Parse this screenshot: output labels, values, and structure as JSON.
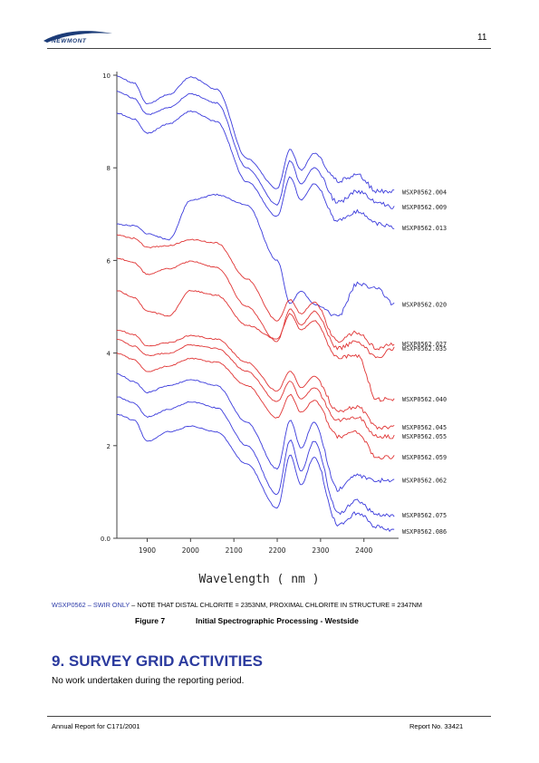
{
  "header": {
    "logo_text": "NEWMONT",
    "page_number": "11"
  },
  "chart_data": {
    "type": "line",
    "xlabel": "Wavelength ( nm )",
    "ylabel": "",
    "xlim": [
      1830,
      2480
    ],
    "ylim": [
      0,
      10
    ],
    "x_ticks": [
      "1900",
      "2000",
      "2100",
      "2200",
      "2300",
      "2400"
    ],
    "y_ticks": [
      "0.0",
      "2",
      "4",
      "6",
      "8",
      "10"
    ],
    "colors": {
      "blue": "#3b3bdc",
      "red": "#e03434"
    },
    "series": [
      {
        "name": "WSXP0562.004",
        "color": "blue",
        "values": [
          9.98,
          9.83,
          9.38,
          9.58,
          9.96,
          9.7,
          8.2,
          7.55,
          8.4,
          7.95,
          8.32,
          7.72,
          7.85,
          7.5,
          7.48
        ]
      },
      {
        "name": "WSXP0562.009",
        "color": "blue",
        "values": [
          9.66,
          9.5,
          9.15,
          9.3,
          9.6,
          9.4,
          8.0,
          7.2,
          8.15,
          7.65,
          8.0,
          7.25,
          7.5,
          7.25,
          7.15
        ]
      },
      {
        "name": "WSXP0562.013",
        "color": "blue",
        "values": [
          9.18,
          9.05,
          8.75,
          8.95,
          9.22,
          9.0,
          7.7,
          6.95,
          7.8,
          7.3,
          7.65,
          6.85,
          7.05,
          6.8,
          6.7
        ]
      },
      {
        "name": "WSXP0562.020",
        "color": "blue",
        "values": [
          6.78,
          6.75,
          6.58,
          6.45,
          7.3,
          7.42,
          7.2,
          6.0,
          5.07,
          5.35,
          5.05,
          4.8,
          5.5,
          5.38,
          5.05
        ]
      },
      {
        "name": "WSXP0562.027",
        "color": "red",
        "values": [
          6.55,
          6.48,
          6.28,
          6.32,
          6.45,
          6.38,
          5.6,
          4.7,
          5.15,
          4.85,
          5.1,
          4.25,
          4.45,
          4.1,
          4.2
        ]
      },
      {
        "name": "WSXP0562.035",
        "color": "red",
        "values": [
          6.05,
          5.95,
          5.7,
          5.82,
          5.98,
          5.85,
          5.0,
          4.25,
          4.95,
          4.6,
          4.9,
          4.1,
          4.25,
          3.9,
          4.1
        ]
      },
      {
        "name": "WSXP0562.040",
        "color": "red",
        "values": [
          5.35,
          5.2,
          4.9,
          4.8,
          5.35,
          5.25,
          4.6,
          4.3,
          4.85,
          4.5,
          4.7,
          3.9,
          3.95,
          3.0,
          3.0
        ]
      },
      {
        "name": "WSXP0562.045",
        "color": "red",
        "values": [
          4.5,
          4.4,
          4.15,
          4.22,
          4.38,
          4.3,
          3.8,
          3.18,
          3.62,
          3.25,
          3.5,
          2.75,
          2.85,
          2.4,
          2.4
        ]
      },
      {
        "name": "WSXP0562.055",
        "color": "red",
        "values": [
          4.3,
          4.15,
          3.95,
          4.0,
          4.18,
          4.1,
          3.6,
          2.95,
          3.4,
          3.0,
          3.25,
          2.55,
          2.62,
          2.2,
          2.2
        ]
      },
      {
        "name": "WSXP0562.059",
        "color": "red",
        "values": [
          4.0,
          3.85,
          3.6,
          3.72,
          3.88,
          3.8,
          3.3,
          2.6,
          3.1,
          2.72,
          2.98,
          2.2,
          2.3,
          1.75,
          1.75
        ]
      },
      {
        "name": "WSXP0562.062",
        "color": "blue",
        "values": [
          3.55,
          3.38,
          3.15,
          3.3,
          3.42,
          3.3,
          2.5,
          1.5,
          2.55,
          1.95,
          2.5,
          1.05,
          1.35,
          1.25,
          1.25
        ]
      },
      {
        "name": "WSXP0562.075",
        "color": "blue",
        "values": [
          3.05,
          2.92,
          2.62,
          2.78,
          2.95,
          2.82,
          2.0,
          0.95,
          2.12,
          1.45,
          2.1,
          0.55,
          0.8,
          0.52,
          0.5
        ]
      },
      {
        "name": "WSXP0562.086",
        "color": "blue",
        "values": [
          2.68,
          2.55,
          2.1,
          2.3,
          2.42,
          2.3,
          1.6,
          0.65,
          1.8,
          1.15,
          1.75,
          0.3,
          0.55,
          0.25,
          0.15
        ]
      }
    ],
    "x": [
      1830,
      1870,
      1900,
      1950,
      2000,
      2060,
      2130,
      2200,
      2230,
      2255,
      2285,
      2340,
      2385,
      2430,
      2470
    ]
  },
  "caption": {
    "blue_part": "WSXP0562 – SWIR ONLY",
    "rest": " – NOTE THAT DISTAL CHLORITE = 2353NM, PROXIMAL CHLORITE IN STRUCTURE = 2347NM"
  },
  "figure": {
    "label": "Figure 7",
    "title": "Initial Spectrographic Processing - Westside"
  },
  "section": {
    "title": "9.  SURVEY GRID ACTIVITIES",
    "body": "No work undertaken during the reporting period."
  },
  "footer": {
    "left": "Annual Report for C171/2001",
    "right": "Report No. 33421"
  }
}
